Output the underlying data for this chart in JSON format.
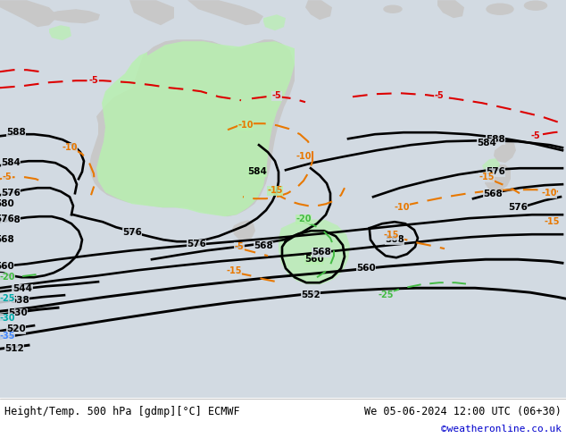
{
  "title_left": "Height/Temp. 500 hPa [gdmp][°C] ECMWF",
  "title_right": "We 05-06-2024 12:00 UTC (06+30)",
  "credit": "©weatheronline.co.uk",
  "fig_width": 6.34,
  "fig_height": 4.9,
  "dpi": 100,
  "credit_color": "#0000cc",
  "ocean_color": "#d2dae2",
  "land_color": "#c8c8c8",
  "green_color": "#b8f0b0"
}
